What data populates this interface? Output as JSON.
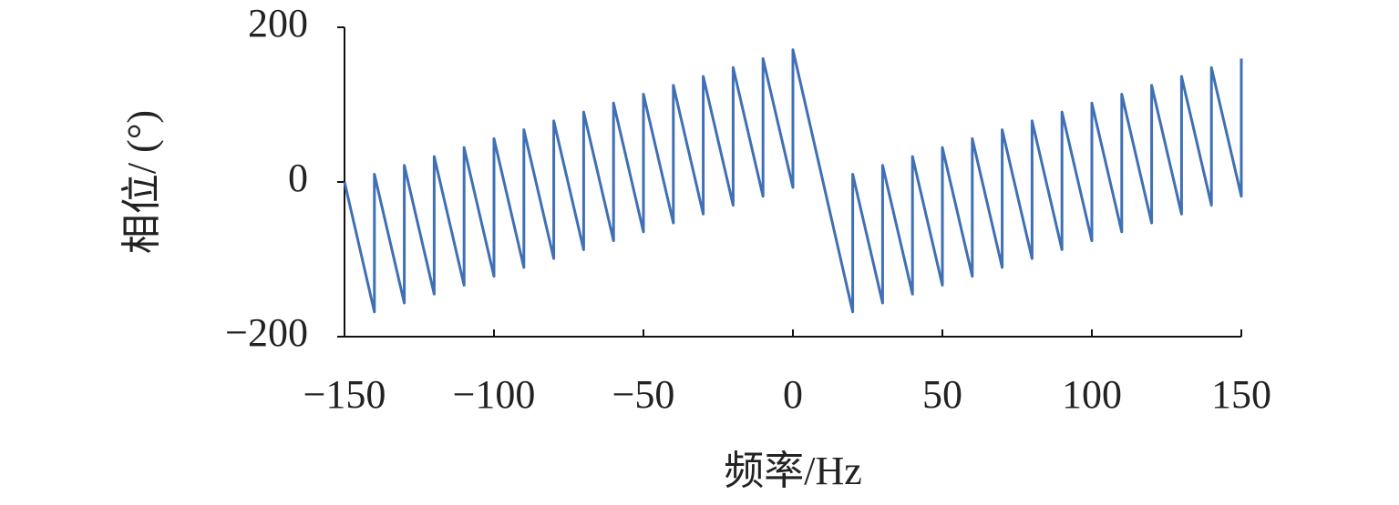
{
  "chart_data": {
    "type": "line",
    "x_label": "频率/Hz",
    "y_label": "相位/ (°)",
    "xlim": [
      -150,
      150
    ],
    "xticks": [
      {
        "value": -150,
        "label": "−150"
      },
      {
        "value": -100,
        "label": "−100"
      },
      {
        "value": -50,
        "label": "−50"
      },
      0,
      50,
      100,
      150
    ],
    "ylim": [
      -200,
      200
    ],
    "yticks": [
      {
        "value": -200,
        "label": "−200"
      },
      0,
      200
    ],
    "series": [
      {
        "color": "#3f6fb5",
        "x": [
          -150,
          -140,
          -140,
          -130,
          -130,
          -120,
          -120,
          -110,
          -110,
          -100,
          -100,
          -90,
          -90,
          -80,
          -80,
          -70,
          -70,
          -60,
          -60,
          -50,
          -50,
          -40,
          -40,
          -30,
          -30,
          -20,
          -20,
          -10,
          -10,
          0,
          0,
          20,
          20,
          30,
          30,
          40,
          40,
          50,
          50,
          60,
          60,
          70,
          70,
          80,
          80,
          90,
          90,
          100,
          100,
          110,
          110,
          120,
          120,
          130,
          130,
          140,
          140,
          150,
          150
        ],
        "values": [
          0,
          -168,
          10,
          -156.5,
          21.5,
          -145,
          33,
          -133.5,
          44.5,
          -122,
          56,
          -110.5,
          67.5,
          -99,
          79,
          -87.5,
          90.5,
          -76,
          102,
          -64.5,
          113.5,
          -53,
          125,
          -41.5,
          136.5,
          -30,
          148,
          -18.5,
          159.5,
          -7,
          171,
          -168,
          10,
          -156.5,
          21.5,
          -145,
          33,
          -133.5,
          44.5,
          -122,
          56,
          -110.5,
          67.5,
          -99,
          79,
          -87.5,
          90.5,
          -76,
          102,
          -64.5,
          113.5,
          -53,
          125,
          -41.5,
          136.5,
          -30,
          148,
          -18.5,
          159.5
        ]
      }
    ]
  }
}
